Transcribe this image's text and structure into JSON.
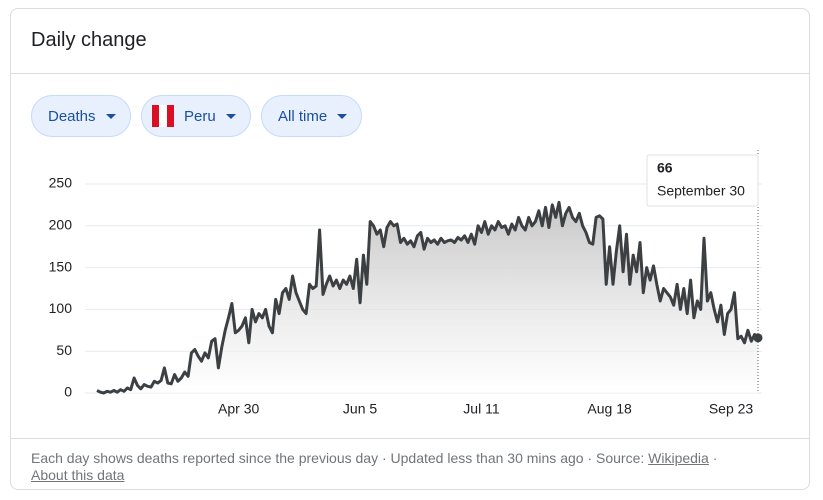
{
  "header": {
    "title": "Daily change"
  },
  "filters": [
    "Deaths",
    "Peru",
    "All time"
  ],
  "chart_data": {
    "type": "line",
    "color": "#3c4043",
    "categories": [
      null,
      null,
      null,
      null,
      null,
      null,
      null,
      null,
      null,
      null,
      null,
      null,
      null,
      null,
      null,
      null,
      null,
      null,
      null,
      null,
      null,
      null,
      null,
      null,
      null,
      null,
      null,
      null,
      null,
      null,
      null,
      null,
      null,
      null,
      null,
      null,
      null,
      null,
      null,
      null,
      null,
      null,
      "Apr 30",
      null,
      null,
      null,
      null,
      null,
      null,
      null,
      null,
      null,
      null,
      null,
      null,
      null,
      null,
      null,
      null,
      null,
      null,
      null,
      null,
      null,
      null,
      null,
      null,
      null,
      null,
      null,
      null,
      null,
      null,
      null,
      null,
      null,
      null,
      null,
      "Jun 5",
      null,
      null,
      null,
      null,
      null,
      null,
      null,
      null,
      null,
      null,
      null,
      null,
      null,
      null,
      null,
      null,
      null,
      null,
      null,
      null,
      null,
      null,
      null,
      null,
      null,
      null,
      null,
      null,
      null,
      null,
      null,
      null,
      null,
      null,
      null,
      "Jul 11",
      null,
      null,
      null,
      null,
      null,
      null,
      null,
      null,
      null,
      null,
      null,
      null,
      null,
      null,
      null,
      null,
      null,
      null,
      null,
      null,
      null,
      null,
      null,
      null,
      null,
      null,
      null,
      null,
      null,
      null,
      null,
      null,
      null,
      null,
      null,
      null,
      null,
      "Aug 18",
      null,
      null,
      null,
      null,
      null,
      null,
      null,
      null,
      null,
      null,
      null,
      null,
      null,
      null,
      null,
      null,
      null,
      null,
      null,
      null,
      null,
      null,
      null,
      null,
      null,
      null,
      null,
      null,
      null,
      null,
      null,
      null,
      null,
      null,
      null,
      "Sep 23",
      null,
      null,
      null,
      null,
      null,
      null,
      null,
      null
    ],
    "values": [
      3,
      1,
      0,
      2,
      1,
      3,
      1,
      4,
      2,
      6,
      4,
      18,
      9,
      5,
      10,
      8,
      7,
      14,
      12,
      15,
      30,
      12,
      11,
      22,
      14,
      18,
      25,
      20,
      48,
      52,
      44,
      38,
      48,
      42,
      62,
      65,
      30,
      55,
      75,
      90,
      107,
      72,
      75,
      80,
      90,
      60,
      100,
      85,
      95,
      90,
      100,
      80,
      72,
      112,
      95,
      120,
      125,
      112,
      140,
      120,
      110,
      100,
      95,
      130,
      125,
      128,
      195,
      118,
      130,
      140,
      128,
      135,
      125,
      135,
      130,
      140,
      125,
      160,
      108,
      165,
      130,
      205,
      200,
      190,
      195,
      175,
      198,
      205,
      200,
      202,
      180,
      185,
      178,
      182,
      175,
      188,
      192,
      172,
      185,
      180,
      183,
      178,
      185,
      180,
      182,
      183,
      180,
      186,
      183,
      188,
      180,
      190,
      178,
      200,
      192,
      205,
      190,
      200,
      195,
      205,
      198,
      200,
      190,
      202,
      195,
      210,
      200,
      195,
      210,
      200,
      205,
      218,
      200,
      222,
      198,
      225,
      210,
      228,
      200,
      215,
      222,
      210,
      205,
      215,
      200,
      192,
      180,
      178,
      210,
      212,
      208,
      130,
      175,
      130,
      170,
      200,
      145,
      190,
      130,
      165,
      145,
      180,
      120,
      150,
      135,
      152,
      130,
      110,
      125,
      120,
      115,
      105,
      130,
      100,
      125,
      95,
      135,
      90,
      110,
      100,
      185,
      110,
      120,
      100,
      85,
      105,
      70,
      95,
      100,
      120,
      65,
      68,
      60,
      75,
      62,
      70,
      66
    ],
    "ylim": [
      0,
      250
    ],
    "yticks": [
      0,
      50,
      100,
      150,
      200,
      250
    ],
    "grid": true,
    "tooltip": {
      "label": "September 30"
    }
  },
  "footer": {
    "text": "Each day shows deaths reported since the previous day · Updated less than 30 mins ago · Source:",
    "link": "Wikipedia",
    "separator": "·",
    "about": "About this data"
  }
}
